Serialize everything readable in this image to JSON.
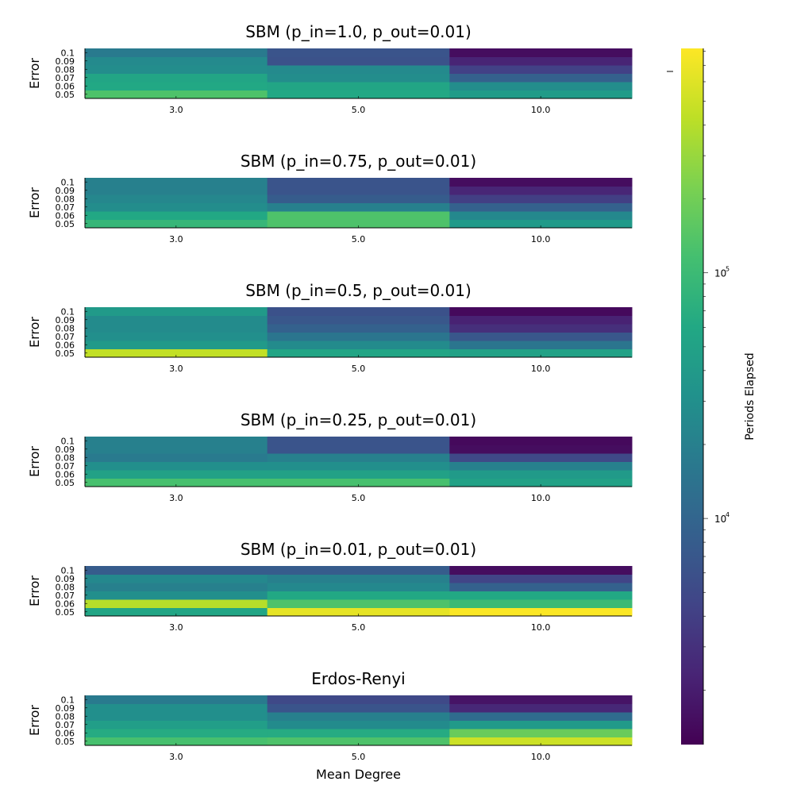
{
  "chart_data": {
    "type": "heatmap",
    "xlabel": "Mean Degree",
    "colorbar": {
      "label": "Periods Elapsed",
      "scale": "log",
      "range": [
        1200,
        820000
      ],
      "ticks": [
        {
          "value": 10000,
          "base": "10",
          "exp": "4"
        },
        {
          "value": 100000,
          "base": "10",
          "exp": "5"
        }
      ]
    },
    "panels": [
      {
        "title": "SBM (p_in=1.0, p_out=0.01)",
        "ylabel": "Error",
        "x": [
          "3.0",
          "5.0",
          "10.0"
        ],
        "y": [
          "0.05",
          "0.06",
          "0.07",
          "0.08",
          "0.09",
          "0.1"
        ],
        "values": [
          [
            130000,
            60000,
            42000
          ],
          [
            60000,
            55000,
            28000
          ],
          [
            55000,
            28000,
            9000
          ],
          [
            28000,
            26000,
            4200
          ],
          [
            26000,
            6200,
            2300
          ],
          [
            17000,
            6500,
            1500
          ]
        ]
      },
      {
        "title": "SBM (p_in=0.75, p_out=0.01)",
        "ylabel": "Error",
        "x": [
          "3.0",
          "5.0",
          "10.0"
        ],
        "y": [
          "0.05",
          "0.06",
          "0.07",
          "0.08",
          "0.09",
          "0.1"
        ],
        "values": [
          [
            90000,
            130000,
            40000
          ],
          [
            60000,
            130000,
            25000
          ],
          [
            28000,
            20000,
            9000
          ],
          [
            24000,
            8000,
            4000
          ],
          [
            20000,
            6500,
            2400
          ],
          [
            20000,
            6500,
            1500
          ]
        ]
      },
      {
        "title": "SBM (p_in=0.5, p_out=0.01)",
        "ylabel": "Error",
        "x": [
          "3.0",
          "5.0",
          "10.0"
        ],
        "y": [
          "0.05",
          "0.06",
          "0.07",
          "0.08",
          "0.09",
          "0.1"
        ],
        "values": [
          [
            450000,
            55000,
            50000
          ],
          [
            40000,
            27000,
            15000
          ],
          [
            30000,
            15000,
            7000
          ],
          [
            27000,
            9000,
            2900
          ],
          [
            27000,
            7000,
            2200
          ],
          [
            40000,
            6000,
            1400
          ]
        ]
      },
      {
        "title": "SBM (p_in=0.25, p_out=0.01)",
        "ylabel": "Error",
        "x": [
          "3.0",
          "5.0",
          "10.0"
        ],
        "y": [
          "0.05",
          "0.06",
          "0.07",
          "0.08",
          "0.09",
          "0.1"
        ],
        "values": [
          [
            120000,
            120000,
            50000
          ],
          [
            50000,
            50000,
            40000
          ],
          [
            30000,
            30000,
            20000
          ],
          [
            17000,
            20000,
            5000
          ],
          [
            20000,
            6500,
            1500
          ],
          [
            20000,
            6500,
            1400
          ]
        ]
      },
      {
        "title": "SBM (p_in=0.01, p_out=0.01)",
        "ylabel": "Error",
        "x": [
          "3.0",
          "5.0",
          "10.0"
        ],
        "y": [
          "0.05",
          "0.06",
          "0.07",
          "0.08",
          "0.09",
          "0.1"
        ],
        "values": [
          [
            55000,
            650000,
            800000
          ],
          [
            400000,
            130000,
            100000
          ],
          [
            30000,
            60000,
            60000
          ],
          [
            20000,
            25000,
            9000
          ],
          [
            25000,
            20000,
            4500
          ],
          [
            8000,
            8000,
            1500
          ]
        ]
      },
      {
        "title": "Erdos-Renyi",
        "ylabel": "Error",
        "x": [
          "3.0",
          "5.0",
          "10.0"
        ],
        "y": [
          "0.05",
          "0.06",
          "0.07",
          "0.08",
          "0.09",
          "0.1"
        ],
        "values": [
          [
            120000,
            130000,
            500000
          ],
          [
            65000,
            65000,
            180000
          ],
          [
            45000,
            27000,
            40000
          ],
          [
            30000,
            20000,
            12000
          ],
          [
            30000,
            6500,
            2500
          ],
          [
            17000,
            5000,
            1700
          ]
        ]
      }
    ]
  }
}
